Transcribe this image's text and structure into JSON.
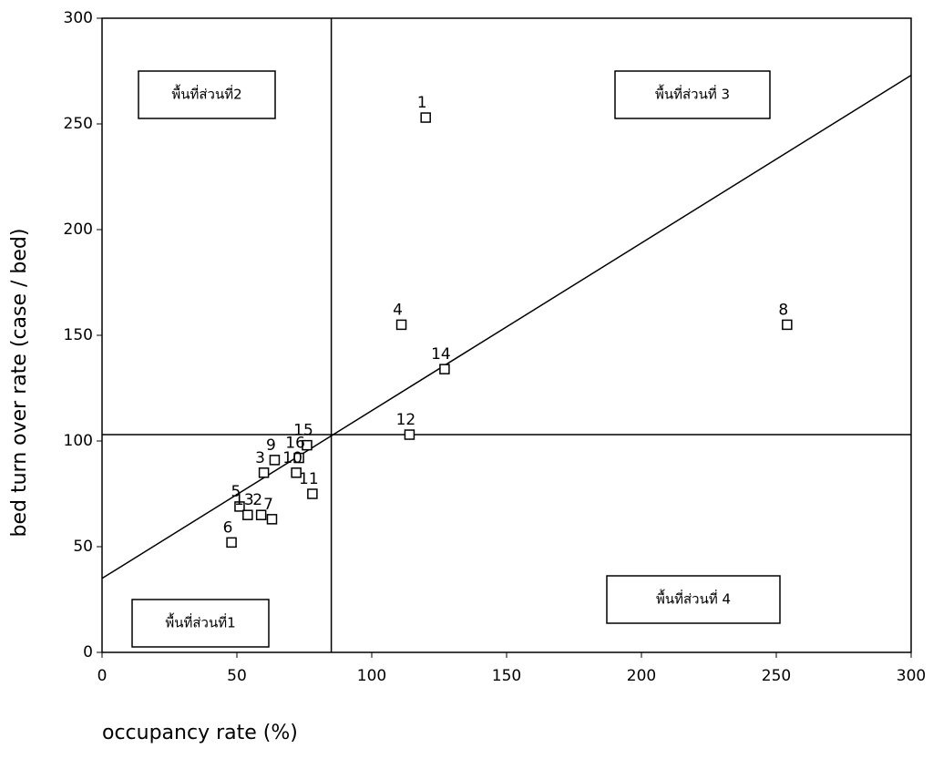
{
  "chart_data": {
    "type": "scatter",
    "x_label": "occupancy rate (%)",
    "y_label": "bed turn over rate (case / bed)",
    "xlim": [
      0,
      300
    ],
    "ylim": [
      0,
      300
    ],
    "xticks": [
      0,
      50,
      100,
      150,
      200,
      250,
      300
    ],
    "yticks": [
      0,
      50,
      100,
      150,
      200,
      250,
      300
    ],
    "grid": false,
    "series": [
      {
        "color": "#000000",
        "labels": [
          "1",
          "4",
          "8",
          "14",
          "12",
          "15",
          "16",
          "10",
          "11",
          "9",
          "3",
          "5",
          "13",
          "2",
          "7",
          "6"
        ],
        "x": [
          120,
          111,
          254,
          127,
          114,
          76,
          73,
          72,
          78,
          64,
          60,
          51,
          54,
          59,
          63,
          48
        ],
        "values": [
          253,
          155,
          155,
          134,
          103,
          98,
          92,
          85,
          75,
          91,
          85,
          69,
          65,
          65,
          63,
          52
        ]
      }
    ],
    "vline": 85,
    "hline": 103,
    "trend_line": {
      "x": [
        0,
        300
      ],
      "y": [
        35,
        273
      ]
    },
    "zone_labels": [
      "พื้นที่ส่วนที่2",
      "พื้นที่ส่วนที่ 3",
      "พื้นที่ส่วนที่1",
      "พื้นที่ส่วนที่ 4"
    ]
  }
}
